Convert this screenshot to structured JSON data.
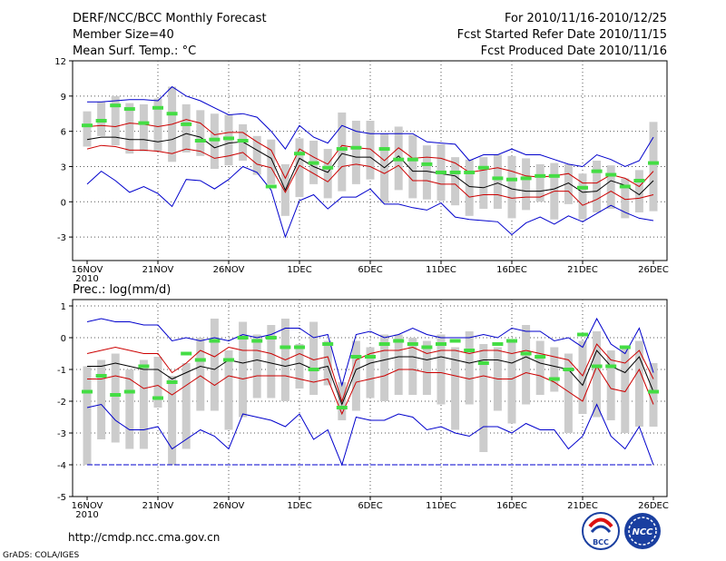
{
  "header": {
    "left": [
      "DERF/NCC/BCC Monthly Forecast",
      "Member Size=40",
      "Mean Surf. Temp.: °C"
    ],
    "right": [
      "For 2010/11/16-2010/12/25",
      "Fcst Started Refer Date 2010/11/15",
      "Fcst Produced Date 2010/11/16"
    ]
  },
  "footer": {
    "url": "http://cmdp.ncc.cma.gov.cn",
    "grads": "GrADS: COLA/IGES",
    "logo1_text": "BCC",
    "logo2_text": "NCC"
  },
  "colors": {
    "max_min": "#0000cc",
    "p10_p90": "#cc0000",
    "mean": "#000000",
    "mode": "#44dd44",
    "box": "#cccccc"
  },
  "chart_data": [
    {
      "type": "box-line",
      "title": "Mean Surf. Temp.: °C",
      "x_days": 40,
      "xticks": [
        {
          "day": 0,
          "label": "16NOV",
          "sub": "2010"
        },
        {
          "day": 5,
          "label": "21NOV"
        },
        {
          "day": 10,
          "label": "26NOV"
        },
        {
          "day": 15,
          "label": "1DEC"
        },
        {
          "day": 20,
          "label": "6DEC"
        },
        {
          "day": 25,
          "label": "11DEC"
        },
        {
          "day": 30,
          "label": "16DEC"
        },
        {
          "day": 35,
          "label": "21DEC"
        },
        {
          "day": 40,
          "label": "26DEC"
        }
      ],
      "ylim": [
        -5,
        12
      ],
      "yticks": [
        -3,
        0,
        3,
        6,
        9,
        12
      ],
      "series": [
        {
          "name": "max",
          "values": [
            8.5,
            8.5,
            8.6,
            8.7,
            8.7,
            8.6,
            9.8,
            9.0,
            8.6,
            8.0,
            7.4,
            7.5,
            7.2,
            6.0,
            4.5,
            6.5,
            5.5,
            5.0,
            6.5,
            6.0,
            5.8,
            5.8,
            5.8,
            5.8,
            5.1,
            5.0,
            4.9,
            3.5,
            4.0,
            4.0,
            4.5,
            4.0,
            4.0,
            3.6,
            3.2,
            3.0,
            4.0,
            3.6,
            3.0,
            3.5,
            5.5
          ]
        },
        {
          "name": "p90",
          "values": [
            6.4,
            6.5,
            6.4,
            6.7,
            6.6,
            6.4,
            6.6,
            7.0,
            6.7,
            5.7,
            5.9,
            5.9,
            5.1,
            4.4,
            2.0,
            4.5,
            3.8,
            3.2,
            4.8,
            4.6,
            4.5,
            3.5,
            4.6,
            3.7,
            3.8,
            3.7,
            3.3,
            2.5,
            2.7,
            2.9,
            2.6,
            2.2,
            2.1,
            2.2,
            2.4,
            1.6,
            1.6,
            2.3,
            2.0,
            1.3,
            2.6
          ]
        },
        {
          "name": "mean",
          "values": [
            5.3,
            5.5,
            5.5,
            5.3,
            5.3,
            5.1,
            5.3,
            5.8,
            5.5,
            4.6,
            5.0,
            5.1,
            4.4,
            3.7,
            1.0,
            3.7,
            3.0,
            2.5,
            4.1,
            3.8,
            3.8,
            2.9,
            3.9,
            2.6,
            2.6,
            2.4,
            2.2,
            1.3,
            1.2,
            1.6,
            1.1,
            0.9,
            0.9,
            1.1,
            1.6,
            0.8,
            0.9,
            1.8,
            1.4,
            0.6,
            1.8
          ]
        },
        {
          "name": "p10",
          "values": [
            4.5,
            4.8,
            4.7,
            4.4,
            4.4,
            4.3,
            4.1,
            4.5,
            4.3,
            3.7,
            3.9,
            4.2,
            3.2,
            2.9,
            0.8,
            3.1,
            2.4,
            1.7,
            3.0,
            3.2,
            3.0,
            2.4,
            3.1,
            1.8,
            1.8,
            1.5,
            1.5,
            0.4,
            0.6,
            0.6,
            0.3,
            0.4,
            0.4,
            0.9,
            0.9,
            -0.3,
            0.2,
            0.9,
            0.2,
            0.3,
            0.6
          ]
        },
        {
          "name": "min",
          "values": [
            1.5,
            2.6,
            1.8,
            0.8,
            1.3,
            0.7,
            -0.4,
            1.9,
            1.8,
            1.1,
            1.9,
            3.0,
            2.5,
            1.0,
            -3.0,
            0.1,
            0.6,
            -0.6,
            0.4,
            0.4,
            1.1,
            -0.2,
            -0.2,
            -0.5,
            -0.7,
            -0.1,
            -1.3,
            -1.5,
            -1.6,
            -1.7,
            -2.8,
            -1.8,
            -1.3,
            -1.9,
            -1.2,
            -1.7,
            -1.0,
            -0.3,
            -0.9,
            -1.4,
            -1.6
          ]
        },
        {
          "name": "mode",
          "values": [
            6.5,
            6.9,
            8.2,
            7.9,
            6.7,
            8.0,
            7.5,
            6.6,
            5.2,
            5.3,
            5.4,
            5.2,
            null,
            1.3,
            null,
            4.1,
            3.3,
            2.9,
            4.5,
            4.6,
            null,
            4.5,
            3.6,
            3.6,
            3.2,
            2.5,
            2.5,
            2.5,
            2.9,
            2.0,
            1.9,
            2.0,
            2.2,
            2.2,
            null,
            1.2,
            2.6,
            2.3,
            1.3,
            1.8,
            3.3
          ]
        },
        {
          "name": "box_high",
          "values": [
            7.7,
            8.5,
            9.0,
            8.4,
            8.3,
            8.8,
            9.8,
            8.3,
            7.8,
            7.5,
            7.4,
            6.6,
            5.6,
            5.3,
            3.2,
            5.4,
            5.2,
            4.5,
            7.6,
            6.9,
            6.9,
            5.8,
            6.4,
            5.7,
            4.8,
            4.9,
            3.8,
            3.6,
            3.8,
            4.0,
            3.9,
            3.7,
            3.2,
            3.3,
            3.2,
            2.4,
            3.5,
            3.1,
            2.0,
            2.7,
            6.8
          ]
        },
        {
          "name": "box_low",
          "values": [
            4.7,
            5.6,
            4.8,
            4.1,
            4.3,
            4.3,
            3.4,
            4.2,
            3.9,
            2.8,
            3.1,
            3.5,
            2.3,
            1.5,
            -1.2,
            0.4,
            1.5,
            0.3,
            0.9,
            1.5,
            1.9,
            -0.1,
            1.0,
            0.3,
            0.2,
            0.1,
            -0.3,
            -1.2,
            -0.6,
            -0.6,
            -1.4,
            -0.7,
            0.0,
            -1.5,
            -0.2,
            -1.5,
            -0.9,
            -0.6,
            -1.4,
            -0.9,
            -0.8
          ]
        }
      ]
    },
    {
      "type": "box-line",
      "title": "Prec.: log(mm/d)",
      "x_days": 40,
      "xticks": [
        {
          "day": 0,
          "label": "16NOV",
          "sub": "2010"
        },
        {
          "day": 5,
          "label": "21NOV"
        },
        {
          "day": 10,
          "label": "26NOV"
        },
        {
          "day": 15,
          "label": "1DEC"
        },
        {
          "day": 20,
          "label": "6DEC"
        },
        {
          "day": 25,
          "label": "11DEC"
        },
        {
          "day": 30,
          "label": "16DEC"
        },
        {
          "day": 35,
          "label": "21DEC"
        },
        {
          "day": 40,
          "label": "26DEC"
        }
      ],
      "ylim": [
        -5,
        1.2
      ],
      "yticks": [
        -5,
        -4,
        -3,
        -2,
        -1,
        0,
        1
      ],
      "series": [
        {
          "name": "max",
          "values": [
            0.5,
            0.6,
            0.5,
            0.5,
            0.4,
            0.4,
            -0.1,
            0.0,
            -0.1,
            0.0,
            -0.1,
            0.1,
            0.0,
            0.1,
            0.3,
            0.3,
            0.0,
            0.1,
            -1.5,
            0.1,
            0.2,
            0.0,
            0.1,
            0.3,
            0.1,
            0.0,
            0.0,
            0.0,
            0.1,
            0.0,
            0.3,
            0.2,
            0.2,
            -0.1,
            0.0,
            -0.3,
            0.6,
            -0.2,
            -0.5,
            0.3,
            -1.1
          ]
        },
        {
          "name": "p90",
          "values": [
            -0.5,
            -0.4,
            -0.3,
            -0.4,
            -0.5,
            -0.5,
            -1.1,
            -0.8,
            -0.4,
            -0.6,
            -0.3,
            -0.4,
            -0.4,
            -0.5,
            -0.7,
            -0.5,
            -0.7,
            -0.6,
            -2.0,
            -0.7,
            -0.5,
            -0.4,
            -0.4,
            -0.3,
            -0.5,
            -0.4,
            -0.4,
            -0.5,
            -0.4,
            -0.4,
            -0.5,
            -0.4,
            -0.5,
            -0.6,
            -0.7,
            -1.2,
            -0.2,
            -0.7,
            -0.8,
            -0.4,
            -1.3
          ]
        },
        {
          "name": "mean",
          "values": [
            -0.9,
            -0.9,
            -0.8,
            -0.9,
            -1.0,
            -1.0,
            -1.3,
            -1.1,
            -0.9,
            -1.0,
            -0.7,
            -0.8,
            -0.7,
            -0.8,
            -0.9,
            -0.8,
            -1.0,
            -0.9,
            -2.1,
            -1.0,
            -0.8,
            -0.7,
            -0.6,
            -0.6,
            -0.7,
            -0.6,
            -0.7,
            -0.8,
            -0.7,
            -0.7,
            -0.8,
            -0.6,
            -0.8,
            -0.9,
            -1.0,
            -1.5,
            -0.4,
            -0.9,
            -1.1,
            -0.6,
            -1.7
          ]
        },
        {
          "name": "p10",
          "values": [
            -1.3,
            -1.3,
            -1.2,
            -1.3,
            -1.6,
            -1.5,
            -1.8,
            -1.5,
            -1.2,
            -1.5,
            -1.2,
            -1.3,
            -1.2,
            -1.2,
            -1.2,
            -1.3,
            -1.4,
            -1.3,
            -2.4,
            -1.4,
            -1.3,
            -1.2,
            -1.0,
            -1.0,
            -1.1,
            -1.1,
            -1.2,
            -1.3,
            -1.2,
            -1.3,
            -1.3,
            -1.1,
            -1.2,
            -1.4,
            -1.7,
            -2.0,
            -0.9,
            -1.6,
            -1.7,
            -1.0,
            -2.1
          ]
        },
        {
          "name": "min",
          "values": [
            -2.2,
            -2.1,
            -2.6,
            -2.9,
            -2.9,
            -2.8,
            -3.5,
            -3.2,
            -2.9,
            -3.1,
            -3.5,
            -2.4,
            -2.5,
            -2.6,
            -2.8,
            -2.4,
            -3.2,
            -2.9,
            -4.0,
            -2.5,
            -2.6,
            -2.6,
            -2.4,
            -2.5,
            -2.9,
            -2.8,
            -3.0,
            -3.1,
            -2.8,
            -2.8,
            -3.0,
            -2.7,
            -2.9,
            -2.9,
            -3.5,
            -3.1,
            -2.1,
            -3.1,
            -3.5,
            -2.8,
            -4.0
          ]
        },
        {
          "name": "mode",
          "values": [
            -1.7,
            -1.2,
            -1.8,
            -1.7,
            -0.9,
            -1.9,
            -1.4,
            -0.5,
            -0.7,
            -0.1,
            -0.7,
            0.0,
            -0.1,
            0.0,
            -0.3,
            -0.3,
            -1.0,
            -0.2,
            -2.2,
            -0.6,
            -0.6,
            -0.2,
            -0.1,
            -0.2,
            -0.3,
            -0.2,
            -0.1,
            -0.4,
            -0.8,
            -0.2,
            -0.1,
            -0.5,
            -0.6,
            -1.3,
            -1.0,
            0.1,
            -0.9,
            -0.9,
            -0.3,
            null,
            -1.7
          ]
        },
        {
          "name": "box_high",
          "values": [
            -0.9,
            -0.7,
            -0.5,
            -1.0,
            -0.7,
            -0.6,
            -1.2,
            -0.8,
            0.0,
            0.6,
            -0.4,
            0.5,
            0.1,
            0.4,
            0.6,
            -0.2,
            0.5,
            -0.1,
            -1.4,
            -0.1,
            -0.3,
            0.1,
            0.1,
            0.0,
            -0.1,
            0.1,
            -0.3,
            0.2,
            -0.2,
            -0.3,
            -0.1,
            0.4,
            -0.1,
            -0.3,
            -0.5,
            -0.1,
            0.2,
            -0.4,
            -0.3,
            -0.1,
            -0.8
          ]
        },
        {
          "name": "box_low",
          "values": [
            -4.0,
            -3.2,
            -3.3,
            -3.5,
            -3.5,
            -2.2,
            -4.0,
            -3.5,
            -2.3,
            -2.3,
            -2.9,
            -2.5,
            -1.9,
            -1.9,
            -2.0,
            -1.6,
            -1.8,
            -1.5,
            -2.6,
            -2.3,
            -1.9,
            -2.0,
            -1.8,
            -1.8,
            -1.8,
            -2.1,
            -2.9,
            -2.1,
            -3.6,
            -2.3,
            -2.7,
            -2.1,
            -1.8,
            -1.7,
            -3.0,
            -2.4,
            -2.5,
            -2.6,
            -3.0,
            -2.8,
            -2.8
          ]
        },
        {
          "name": "baseline",
          "values": [
            -4.0
          ]
        }
      ]
    }
  ]
}
